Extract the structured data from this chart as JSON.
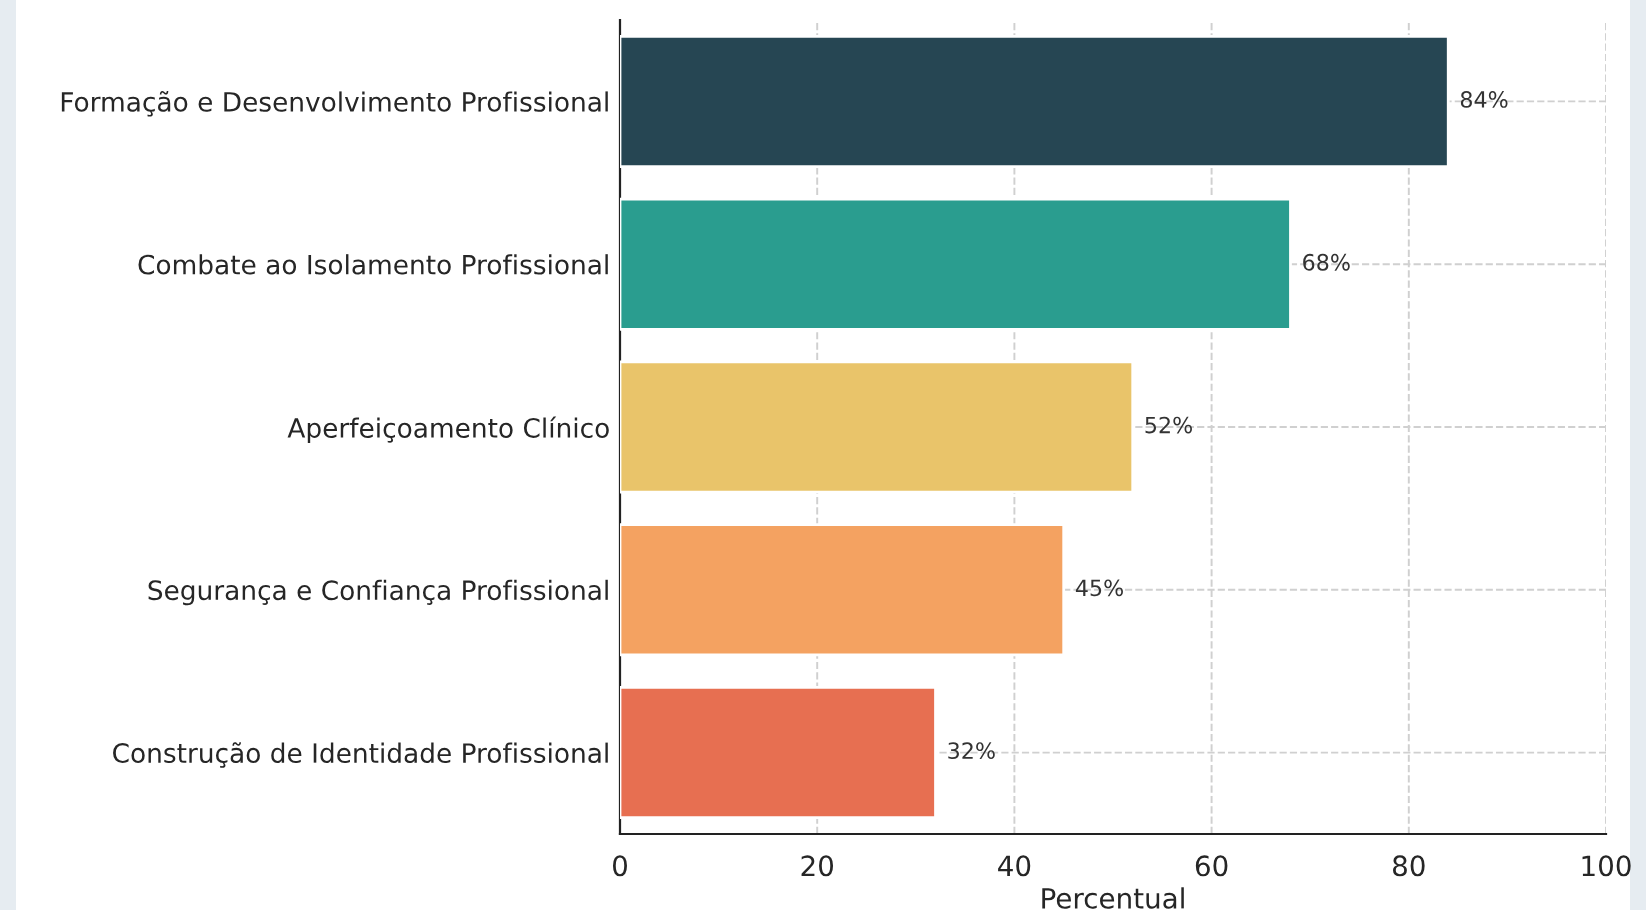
{
  "chart_data": {
    "type": "bar",
    "orientation": "horizontal",
    "xlabel": "Percentual",
    "categories": [
      "Formação e Desenvolvimento Profissional",
      "Combate ao Isolamento Profissional",
      "Aperfeiçoamento Clínico",
      "Segurança e Confiança Profissional",
      "Construção de Identidade Profissional"
    ],
    "values": [
      84,
      68,
      52,
      45,
      32
    ],
    "colors": [
      "#264653",
      "#2a9d8f",
      "#e9c46a",
      "#f4a261",
      "#e76f51"
    ],
    "value_labels": [
      "84%",
      "68%",
      "52%",
      "45%",
      "32%"
    ],
    "xlim": [
      0,
      100
    ],
    "xticks": [
      0,
      20,
      40,
      60,
      80,
      100
    ],
    "grid": true
  }
}
